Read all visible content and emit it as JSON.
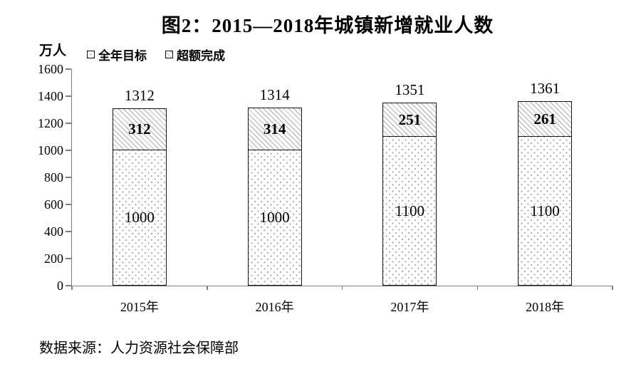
{
  "title": "图2：2015—2018年城镇新增就业人数",
  "y_axis_unit": "万人",
  "legend": {
    "items": [
      {
        "label": "全年目标",
        "pattern": "dots"
      },
      {
        "label": "超额完成",
        "pattern": "hatch"
      }
    ]
  },
  "source": "数据来源：人力资源社会保障部",
  "colors": {
    "bar_border": "#161616",
    "axis": "#7f7f7f",
    "pattern_gray": "#b0b0b0",
    "text": "#000000",
    "background": "#ffffff"
  },
  "chart_data": {
    "type": "bar",
    "stacked": true,
    "categories": [
      "2015年",
      "2016年",
      "2017年",
      "2018年"
    ],
    "series": [
      {
        "name": "全年目标",
        "values": [
          1000,
          1000,
          1100,
          1100
        ],
        "pattern": "dots"
      },
      {
        "name": "超额完成",
        "values": [
          312,
          314,
          251,
          261
        ],
        "pattern": "hatch"
      }
    ],
    "totals": [
      1312,
      1314,
      1351,
      1361
    ],
    "title": "图2：2015—2018年城镇新增就业人数",
    "xlabel": "",
    "ylabel": "万人",
    "ylim": [
      0,
      1600
    ],
    "yticks": [
      0,
      200,
      400,
      600,
      800,
      1000,
      1200,
      1400,
      1600
    ],
    "grid": false,
    "legend_position": "top-left"
  }
}
